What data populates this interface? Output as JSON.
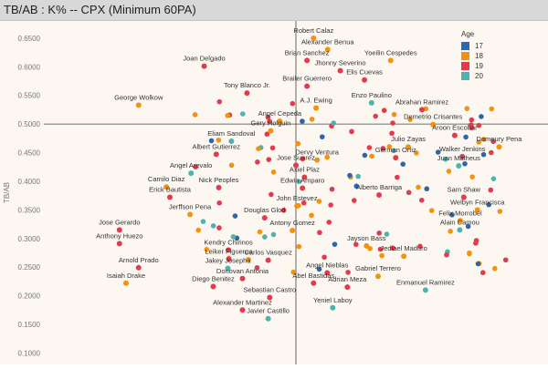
{
  "header": {
    "title": "TB/AB : K% -- CPX (Minimum 60PA)"
  },
  "legend": {
    "title": "Age",
    "items": [
      {
        "label": "17",
        "color": "#2e66a8"
      },
      {
        "label": "18",
        "color": "#f2930b"
      },
      {
        "label": "19",
        "color": "#e23b4e"
      },
      {
        "label": "20",
        "color": "#4db3ad"
      }
    ]
  },
  "chart_data": {
    "type": "scatter",
    "title": "TB/AB : K% -- CPX (Minimum 60PA)",
    "ylabel": "TB/AB",
    "xlabel": "",
    "ylim": [
      0.08,
      0.68
    ],
    "xlim": [
      0,
      100
    ],
    "yticks": [
      "0.6500",
      "0.6000",
      "0.5500",
      "0.5000",
      "0.4500",
      "0.4000",
      "0.3500",
      "0.3000",
      "0.2500",
      "0.2000",
      "0.1500",
      "0.1000"
    ],
    "ref_x": 50,
    "ref_y": 0.5,
    "colors": {
      "17": "#2e66a8",
      "18": "#f2930b",
      "19": "#e23b4e",
      "20": "#4db3ad"
    },
    "labeled_points": [
      {
        "name": "Robert Calaz",
        "x": 53.5,
        "y": 0.65,
        "age": "18"
      },
      {
        "name": "Alexander Benua",
        "x": 56.3,
        "y": 0.63,
        "age": "18"
      },
      {
        "name": "Brian Sanchez",
        "x": 52.2,
        "y": 0.611,
        "age": "19"
      },
      {
        "name": "Yoeilin Cespedes",
        "x": 68.8,
        "y": 0.611,
        "age": "18"
      },
      {
        "name": "Jhonny Severino",
        "x": 58.8,
        "y": 0.593,
        "age": "19"
      },
      {
        "name": "Joan Delgado",
        "x": 31.8,
        "y": 0.601,
        "age": "19"
      },
      {
        "name": "Elis Cuevas",
        "x": 63.6,
        "y": 0.577,
        "age": "19"
      },
      {
        "name": "Brailer Guerrero",
        "x": 52.2,
        "y": 0.566,
        "age": "19"
      },
      {
        "name": "Tony Blanco Jr.",
        "x": 40.3,
        "y": 0.554,
        "age": "19"
      },
      {
        "name": "Enzo Paulino",
        "x": 65.0,
        "y": 0.537,
        "age": "20"
      },
      {
        "name": "A.J. Ewing",
        "x": 54.0,
        "y": 0.528,
        "age": "18"
      },
      {
        "name": "Abrahan Ramirez",
        "x": 75.0,
        "y": 0.525,
        "age": "19"
      },
      {
        "name": "George Wolkow",
        "x": 18.8,
        "y": 0.533,
        "age": "18"
      },
      {
        "name": "Angel Cepeda",
        "x": 46.8,
        "y": 0.505,
        "age": "18"
      },
      {
        "name": "Demetrio Crisantes",
        "x": 77.2,
        "y": 0.499,
        "age": "18"
      },
      {
        "name": "Gery Holguin",
        "x": 45.0,
        "y": 0.488,
        "age": "18"
      },
      {
        "name": "Aroon Escobar",
        "x": 81.5,
        "y": 0.48,
        "age": "19"
      },
      {
        "name": "Eliam Sandoval",
        "x": 37.2,
        "y": 0.47,
        "age": "20"
      },
      {
        "name": "Julio Zayas",
        "x": 72.3,
        "y": 0.46,
        "age": "18"
      },
      {
        "name": "Albert Gutierrez",
        "x": 34.2,
        "y": 0.447,
        "age": "19"
      },
      {
        "name": "Dameury Pena",
        "x": 90.3,
        "y": 0.46,
        "age": "18"
      },
      {
        "name": "Walker Jenkins",
        "x": 83.0,
        "y": 0.443,
        "age": "19"
      },
      {
        "name": "Dervy Ventura",
        "x": 54.2,
        "y": 0.437,
        "age": "18"
      },
      {
        "name": "German Ortiz",
        "x": 69.8,
        "y": 0.441,
        "age": "19"
      },
      {
        "name": "Jose Suarez",
        "x": 50.0,
        "y": 0.428,
        "age": "19"
      },
      {
        "name": "Juan Matheus",
        "x": 82.3,
        "y": 0.427,
        "age": "20"
      },
      {
        "name": "Angel Arevalo",
        "x": 29.2,
        "y": 0.414,
        "age": "20"
      },
      {
        "name": "Axiel Plaz",
        "x": 51.7,
        "y": 0.407,
        "age": "19"
      },
      {
        "name": "Camilo Diaz",
        "x": 24.3,
        "y": 0.39,
        "age": "18"
      },
      {
        "name": "Nick Peoples",
        "x": 34.7,
        "y": 0.389,
        "age": "19"
      },
      {
        "name": "Edwin Amparo",
        "x": 51.3,
        "y": 0.388,
        "age": "19"
      },
      {
        "name": "Erick Bautista",
        "x": 25.0,
        "y": 0.372,
        "age": "19"
      },
      {
        "name": "Alberto Barriga",
        "x": 66.5,
        "y": 0.376,
        "age": "19"
      },
      {
        "name": "Sam Shaw",
        "x": 83.3,
        "y": 0.372,
        "age": "19"
      },
      {
        "name": "John Estevez",
        "x": 50.2,
        "y": 0.357,
        "age": "18"
      },
      {
        "name": "Welbyn Francisca",
        "x": 86.0,
        "y": 0.35,
        "age": "18"
      },
      {
        "name": "Jerffson Pena",
        "x": 29.0,
        "y": 0.342,
        "age": "18"
      },
      {
        "name": "Douglas Glod",
        "x": 43.8,
        "y": 0.336,
        "age": "19"
      },
      {
        "name": "Felix Morrobel",
        "x": 82.6,
        "y": 0.331,
        "age": "18"
      },
      {
        "name": "Jose Gerardo",
        "x": 15.0,
        "y": 0.315,
        "age": "19"
      },
      {
        "name": "Antony Gomez",
        "x": 49.3,
        "y": 0.314,
        "age": "18"
      },
      {
        "name": "Alain Camou",
        "x": 82.5,
        "y": 0.315,
        "age": "20"
      },
      {
        "name": "Jayson Bass",
        "x": 64.0,
        "y": 0.287,
        "age": "18"
      },
      {
        "name": "Anthony Huezo",
        "x": 15.0,
        "y": 0.291,
        "age": "19"
      },
      {
        "name": "Kendry Chirinos",
        "x": 36.6,
        "y": 0.28,
        "age": "19"
      },
      {
        "name": "Jediael Maduro",
        "x": 71.4,
        "y": 0.269,
        "age": "18"
      },
      {
        "name": "Leiker Figueroa",
        "x": 36.7,
        "y": 0.264,
        "age": "19"
      },
      {
        "name": "Carlos Vasquez",
        "x": 44.5,
        "y": 0.262,
        "age": "19"
      },
      {
        "name": "Arnold Prado",
        "x": 18.8,
        "y": 0.249,
        "age": "19"
      },
      {
        "name": "Jakey Josepha",
        "x": 36.5,
        "y": 0.248,
        "age": "20"
      },
      {
        "name": "Angel Nieblas",
        "x": 56.2,
        "y": 0.24,
        "age": "19"
      },
      {
        "name": "Gabriel Terrero",
        "x": 66.3,
        "y": 0.234,
        "age": "18"
      },
      {
        "name": "Isaiah Drake",
        "x": 16.3,
        "y": 0.222,
        "age": "18"
      },
      {
        "name": "Donovan Antonia",
        "x": 39.4,
        "y": 0.23,
        "age": "19"
      },
      {
        "name": "Abel Bastidas",
        "x": 53.5,
        "y": 0.222,
        "age": "19"
      },
      {
        "name": "Diego Benitez",
        "x": 33.6,
        "y": 0.216,
        "age": "19"
      },
      {
        "name": "Adrian Meza",
        "x": 60.2,
        "y": 0.215,
        "age": "19"
      },
      {
        "name": "Enmanuel Ramirez",
        "x": 75.7,
        "y": 0.21,
        "age": "20"
      },
      {
        "name": "Sebastian Castro",
        "x": 44.8,
        "y": 0.197,
        "age": "19"
      },
      {
        "name": "Alexander Martinez",
        "x": 39.4,
        "y": 0.175,
        "age": "19"
      },
      {
        "name": "Yeniel Laboy",
        "x": 57.3,
        "y": 0.179,
        "age": "20"
      },
      {
        "name": "Javier Castillo",
        "x": 44.5,
        "y": 0.16,
        "age": "20"
      }
    ]
  }
}
